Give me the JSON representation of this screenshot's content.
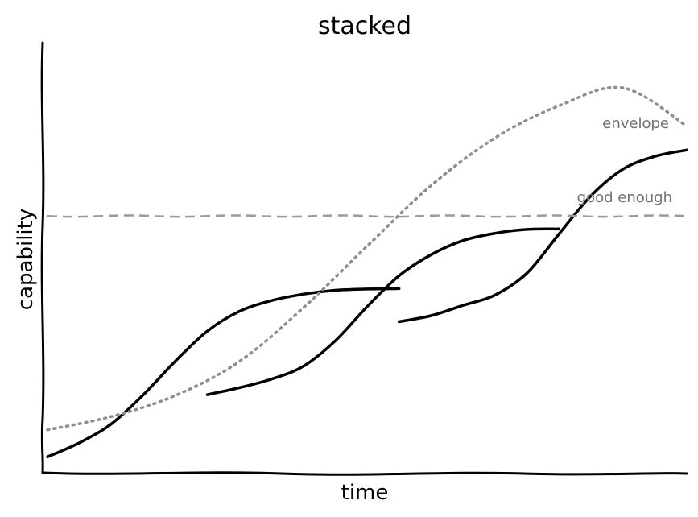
{
  "chart_data": {
    "type": "line",
    "title": "stacked",
    "xlabel": "time",
    "ylabel": "capability",
    "xlim": [
      0,
      100
    ],
    "ylim": [
      0,
      100
    ],
    "grid": false,
    "legend": "none",
    "annotations": {
      "envelope": "envelope",
      "good_enough": "good enough"
    },
    "series": [
      {
        "x": [
          0,
          5,
          10,
          15,
          20,
          25,
          30,
          35,
          40,
          45,
          50,
          55
        ],
        "y": [
          3.5,
          6.8,
          11.2,
          18.0,
          25.8,
          32.8,
          37.4,
          39.9,
          41.4,
          42.3,
          42.6,
          42.7
        ]
      },
      {
        "x": [
          25,
          30,
          35,
          40,
          45,
          50,
          55,
          60,
          65,
          70,
          75,
          80
        ],
        "y": [
          18.0,
          19.6,
          21.6,
          24.6,
          30.5,
          38.5,
          45.7,
          50.6,
          53.9,
          55.6,
          56.5,
          56.6
        ]
      },
      {
        "x": [
          55,
          60,
          65,
          70,
          75,
          80,
          85,
          90,
          95,
          100
        ],
        "y": [
          35.0,
          36.4,
          38.8,
          41.2,
          46.3,
          55.4,
          64.3,
          70.5,
          73.5,
          75.0
        ]
      },
      {
        "x": [
          0,
          10,
          20,
          30,
          40,
          50,
          60,
          70,
          80,
          90,
          100
        ],
        "y": [
          9.8,
          12.9,
          17.8,
          25.7,
          38.2,
          52.6,
          66.7,
          77.8,
          85.3,
          89.5,
          80.6
        ]
      },
      {
        "x": [
          0,
          100
        ],
        "y": [
          59.6,
          59.6
        ]
      }
    ]
  },
  "styles": {
    "curve_color": "#000000",
    "envelope_color": "#8f8f8f",
    "threshold_color": "#9a9a9a",
    "annotation_color": "#6f6f6f"
  }
}
